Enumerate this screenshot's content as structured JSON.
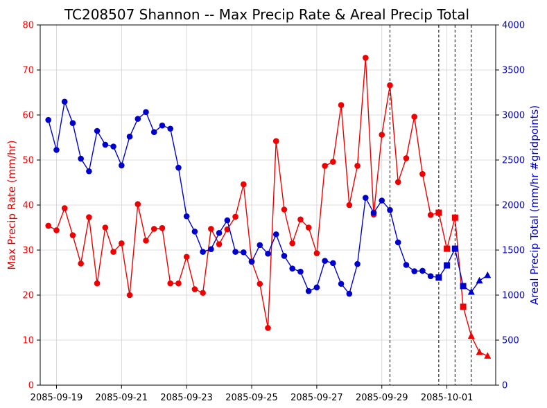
{
  "chart_data": {
    "type": "line",
    "title": "TC208507 Shannon -- Max Precip Rate & Areal Precip Total",
    "xlabel": "",
    "x_tick_labels": [
      "2085-09-19",
      "2085-09-21",
      "2085-09-23",
      "2085-09-25",
      "2085-09-27",
      "2085-09-29",
      "2085-10-01"
    ],
    "x_range": [
      "2085-09-18 12:00",
      "2085-10-02 12:00"
    ],
    "y_left": {
      "label": "Max Precip Rate (mm/hr)",
      "range": [
        0,
        80
      ],
      "ticks": [
        0,
        10,
        20,
        30,
        40,
        50,
        60,
        70,
        80
      ],
      "color": "#ff0000"
    },
    "y_right": {
      "label": "Areal Precip Total (mm/hr #gridpoints)",
      "range": [
        0,
        4000
      ],
      "ticks": [
        0,
        500,
        1000,
        1500,
        2000,
        2500,
        3000,
        3500,
        4000
      ],
      "color": "#0000cc"
    },
    "grid": true,
    "vertical_markers": [
      "2085-09-29 06:00",
      "2085-09-30 18:00",
      "2085-10-01 06:00",
      "2085-10-01 18:00"
    ],
    "series": [
      {
        "axis": "left",
        "color": "#ee0000",
        "x": [
          "2085-09-18 18:00",
          "2085-09-19 00:00",
          "2085-09-19 06:00",
          "2085-09-19 12:00",
          "2085-09-19 18:00",
          "2085-09-20 00:00",
          "2085-09-20 06:00",
          "2085-09-20 12:00",
          "2085-09-20 18:00",
          "2085-09-21 00:00",
          "2085-09-21 06:00",
          "2085-09-21 12:00",
          "2085-09-21 18:00",
          "2085-09-22 00:00",
          "2085-09-22 06:00",
          "2085-09-22 12:00",
          "2085-09-22 18:00",
          "2085-09-23 00:00",
          "2085-09-23 06:00",
          "2085-09-23 12:00",
          "2085-09-23 18:00",
          "2085-09-24 00:00",
          "2085-09-24 06:00",
          "2085-09-24 12:00",
          "2085-09-24 18:00",
          "2085-09-25 00:00",
          "2085-09-25 06:00",
          "2085-09-25 12:00",
          "2085-09-25 18:00",
          "2085-09-26 00:00",
          "2085-09-26 06:00",
          "2085-09-26 12:00",
          "2085-09-26 18:00",
          "2085-09-27 00:00",
          "2085-09-27 06:00",
          "2085-09-27 12:00",
          "2085-09-27 18:00",
          "2085-09-28 00:00",
          "2085-09-28 06:00",
          "2085-09-28 12:00",
          "2085-09-28 18:00",
          "2085-09-29 00:00",
          "2085-09-29 06:00",
          "2085-09-29 12:00",
          "2085-09-29 18:00",
          "2085-09-30 00:00",
          "2085-09-30 06:00",
          "2085-09-30 12:00",
          "2085-09-30 18:00",
          "2085-10-01 00:00",
          "2085-10-01 06:00",
          "2085-10-01 12:00",
          "2085-10-01 18:00",
          "2085-10-02 00:00",
          "2085-10-02 06:00"
        ],
        "values": [
          35.4,
          34.4,
          39.3,
          33.3,
          27.0,
          37.3,
          22.6,
          35.0,
          29.6,
          31.5,
          20.0,
          40.2,
          32.1,
          34.7,
          34.9,
          22.6,
          22.6,
          28.5,
          21.3,
          20.5,
          34.7,
          31.3,
          34.6,
          37.4,
          44.6,
          27.5,
          22.5,
          12.7,
          54.2,
          39.0,
          31.5,
          36.8,
          35.0,
          29.3,
          48.7,
          49.6,
          62.2,
          40.0,
          48.7,
          72.7,
          37.9,
          55.6,
          66.6,
          45.1,
          50.4,
          59.6,
          46.9,
          37.8,
          38.3,
          30.3,
          37.2,
          17.4,
          10.9,
          7.3,
          6.5
        ],
        "markers": [
          "circle",
          "circle",
          "circle",
          "circle",
          "circle",
          "circle",
          "circle",
          "circle",
          "circle",
          "circle",
          "circle",
          "circle",
          "circle",
          "circle",
          "circle",
          "circle",
          "circle",
          "circle",
          "circle",
          "circle",
          "circle",
          "circle",
          "circle",
          "circle",
          "circle",
          "circle",
          "circle",
          "circle",
          "circle",
          "circle",
          "circle",
          "circle",
          "circle",
          "circle",
          "circle",
          "circle",
          "circle",
          "circle",
          "circle",
          "circle",
          "circle",
          "circle",
          "circle",
          "circle",
          "circle",
          "circle",
          "circle",
          "circle",
          "square",
          "square",
          "square",
          "square",
          "triangle",
          "triangle",
          "triangle"
        ]
      },
      {
        "axis": "right",
        "color": "#0000cc",
        "x": [
          "2085-09-18 18:00",
          "2085-09-19 00:00",
          "2085-09-19 06:00",
          "2085-09-19 12:00",
          "2085-09-19 18:00",
          "2085-09-20 00:00",
          "2085-09-20 06:00",
          "2085-09-20 12:00",
          "2085-09-20 18:00",
          "2085-09-21 00:00",
          "2085-09-21 06:00",
          "2085-09-21 12:00",
          "2085-09-21 18:00",
          "2085-09-22 00:00",
          "2085-09-22 06:00",
          "2085-09-22 12:00",
          "2085-09-22 18:00",
          "2085-09-23 00:00",
          "2085-09-23 06:00",
          "2085-09-23 12:00",
          "2085-09-23 18:00",
          "2085-09-24 00:00",
          "2085-09-24 06:00",
          "2085-09-24 12:00",
          "2085-09-24 18:00",
          "2085-09-25 00:00",
          "2085-09-25 06:00",
          "2085-09-25 12:00",
          "2085-09-25 18:00",
          "2085-09-26 00:00",
          "2085-09-26 06:00",
          "2085-09-26 12:00",
          "2085-09-26 18:00",
          "2085-09-27 00:00",
          "2085-09-27 06:00",
          "2085-09-27 12:00",
          "2085-09-27 18:00",
          "2085-09-28 00:00",
          "2085-09-28 06:00",
          "2085-09-28 12:00",
          "2085-09-28 18:00",
          "2085-09-29 00:00",
          "2085-09-29 06:00",
          "2085-09-29 12:00",
          "2085-09-29 18:00",
          "2085-09-30 00:00",
          "2085-09-30 06:00",
          "2085-09-30 12:00",
          "2085-09-30 18:00",
          "2085-10-01 00:00",
          "2085-10-01 06:00",
          "2085-10-01 12:00",
          "2085-10-01 18:00",
          "2085-10-02 00:00",
          "2085-10-02 06:00"
        ],
        "values": [
          2945,
          2612,
          3148,
          2910,
          2515,
          2375,
          2823,
          2670,
          2650,
          2440,
          2760,
          2957,
          3032,
          2810,
          2883,
          2848,
          2415,
          1875,
          1705,
          1480,
          1510,
          1690,
          1830,
          1480,
          1475,
          1370,
          1555,
          1460,
          1675,
          1435,
          1295,
          1260,
          1045,
          1085,
          1380,
          1355,
          1125,
          1015,
          1345,
          2080,
          1915,
          2050,
          1945,
          1585,
          1335,
          1265,
          1270,
          1210,
          1195,
          1330,
          1515,
          1100,
          1035,
          1160,
          1220
        ],
        "markers": [
          "circle",
          "circle",
          "circle",
          "circle",
          "circle",
          "circle",
          "circle",
          "circle",
          "circle",
          "circle",
          "circle",
          "circle",
          "circle",
          "circle",
          "circle",
          "circle",
          "circle",
          "circle",
          "circle",
          "circle",
          "circle",
          "circle",
          "circle",
          "circle",
          "circle",
          "circle",
          "circle",
          "circle",
          "circle",
          "circle",
          "circle",
          "circle",
          "circle",
          "circle",
          "circle",
          "circle",
          "circle",
          "circle",
          "circle",
          "circle",
          "circle",
          "circle",
          "circle",
          "circle",
          "circle",
          "circle",
          "circle",
          "circle",
          "square",
          "square",
          "square",
          "square",
          "triangle",
          "triangle",
          "triangle"
        ]
      }
    ]
  }
}
